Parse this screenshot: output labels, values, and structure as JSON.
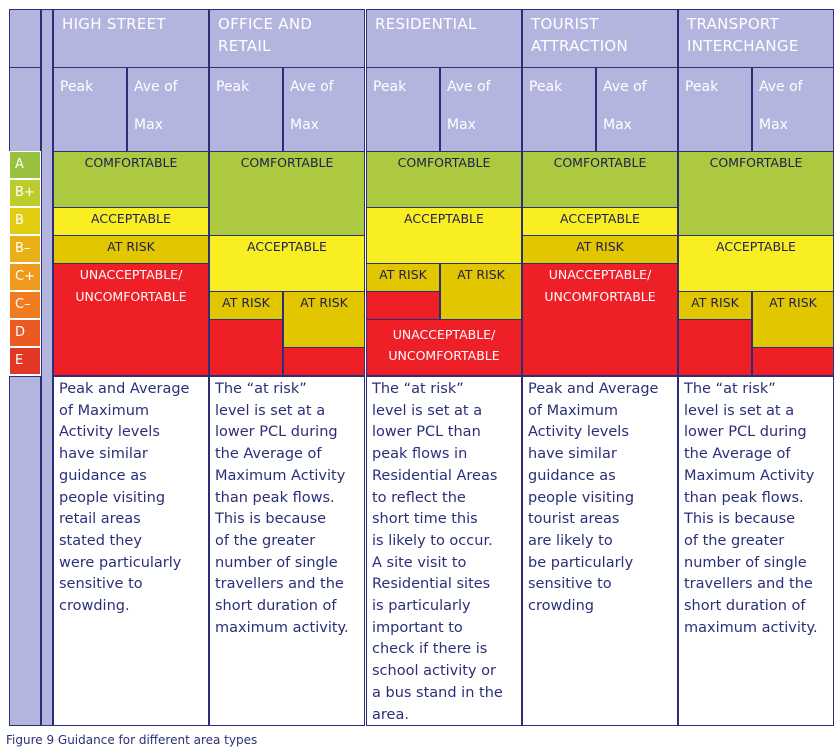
{
  "figure": {
    "caption": "Figure 9 Guidance for different area types"
  },
  "grades": [
    {
      "label": "A",
      "color": "#98c13d"
    },
    {
      "label": "B+",
      "color": "#bccc2c"
    },
    {
      "label": "B",
      "color": "#e3cd12"
    },
    {
      "label": "B–",
      "color": "#e8b016"
    },
    {
      "label": "C+",
      "color": "#ef9a1c"
    },
    {
      "label": "C–",
      "color": "#f07c20"
    },
    {
      "label": "D",
      "color": "#ec5a24"
    },
    {
      "label": "E",
      "color": "#e33725"
    }
  ],
  "sub_headers": {
    "peak": "Peak",
    "ave_line1": "Ave of",
    "ave_line2": "Max"
  },
  "columns": [
    {
      "title_line1": "HIGH STREET",
      "title_line2": "",
      "bands": {
        "comfortable": "COMFORTABLE",
        "acceptable": "ACCEPTABLE",
        "at_risk": "AT RISK",
        "unacceptable_line1": "UNACCEPTABLE/",
        "unacceptable_line2": "UNCOMFORTABLE"
      },
      "description": "Peak and Average\nof Maximum\nActivity levels\nhave similar\nguidance as\npeople visiting\nretail areas\nstated they\nwere particularly\nsensitive to\ncrowding."
    },
    {
      "title_line1": "OFFICE AND",
      "title_line2": "RETAIL",
      "bands": {
        "comfortable": "COMFORTABLE",
        "acceptable": "ACCEPTABLE",
        "at_risk_peak": "AT RISK",
        "at_risk_ave": "AT RISK"
      },
      "description": "The “at risk”\nlevel is set at a\nlower PCL during\nthe Average of\nMaximum Activity\nthan peak flows.\nThis is because\nof the greater\nnumber of single\ntravellers and the\nshort duration of\nmaximum activity."
    },
    {
      "title_line1": "RESIDENTIAL",
      "title_line2": "",
      "bands": {
        "comfortable": "COMFORTABLE",
        "acceptable": "ACCEPTABLE",
        "at_risk_peak": "AT RISK",
        "at_risk_ave": "AT RISK",
        "unacceptable_line1": "UNACCEPTABLE/",
        "unacceptable_line2": "UNCOMFORTABLE"
      },
      "description": "The “at risk”\nlevel is set at a\nlower PCL  than\npeak flows in\nResidential Areas\nto reflect the\nshort time this\nis likely to occur.\nA site visit to\nResidential sites\nis particularly\nimportant to\ncheck if there is\nschool activity or\na bus stand in the\narea."
    },
    {
      "title_line1": "TOURIST",
      "title_line2": "ATTRACTION",
      "bands": {
        "comfortable": "COMFORTABLE",
        "acceptable": "ACCEPTABLE",
        "at_risk": "AT RISK",
        "unacceptable_line1": "UNACCEPTABLE/",
        "unacceptable_line2": "UNCOMFORTABLE"
      },
      "description": "Peak and Average\nof Maximum\nActivity levels\nhave similar\nguidance as\npeople visiting\ntourist areas\nare likely to\nbe particularly\nsensitive to\ncrowding"
    },
    {
      "title_line1": "TRANSPORT",
      "title_line2": "INTERCHANGE",
      "bands": {
        "comfortable": "COMFORTABLE",
        "acceptable": "ACCEPTABLE",
        "at_risk_peak": "AT RISK",
        "at_risk_ave": "AT RISK"
      },
      "description": "The “at risk”\nlevel is set at a\nlower PCL during\nthe Average of\nMaximum Activity\nthan peak flows.\nThis is because\nof the greater\nnumber of single\ntravellers and the\nshort duration of\nmaximum activity."
    }
  ]
}
